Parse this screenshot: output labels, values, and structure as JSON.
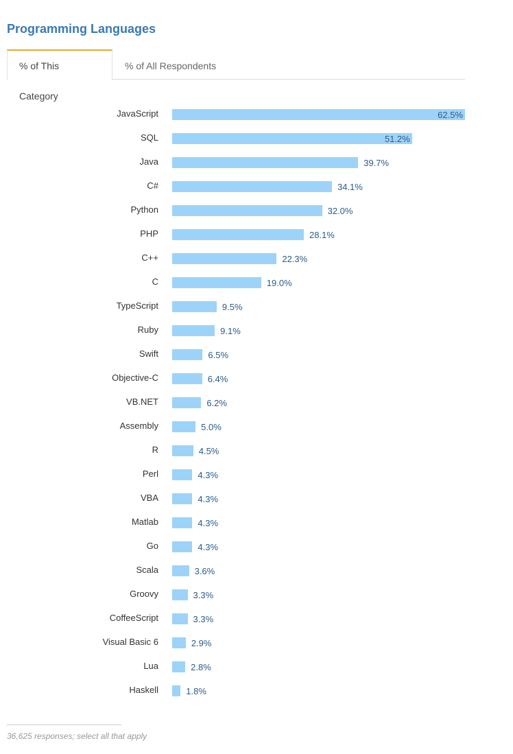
{
  "header": {
    "title": "Programming Languages"
  },
  "tabs": [
    {
      "label": "% of This Category",
      "active": true
    },
    {
      "label": "% of All Respondents",
      "active": false
    }
  ],
  "chart_data": {
    "type": "bar",
    "orientation": "horizontal",
    "title": "Programming Languages",
    "categories": [
      "JavaScript",
      "SQL",
      "Java",
      "C#",
      "Python",
      "PHP",
      "C++",
      "C",
      "TypeScript",
      "Ruby",
      "Swift",
      "Objective-C",
      "VB.NET",
      "Assembly",
      "R",
      "Perl",
      "VBA",
      "Matlab",
      "Go",
      "Scala",
      "Groovy",
      "CoffeeScript",
      "Visual Basic 6",
      "Lua",
      "Haskell"
    ],
    "values": [
      62.5,
      51.2,
      39.7,
      34.1,
      32.0,
      28.1,
      22.3,
      19.0,
      9.5,
      9.1,
      6.5,
      6.4,
      6.2,
      5.0,
      4.5,
      4.3,
      4.3,
      4.3,
      4.3,
      3.6,
      3.3,
      3.3,
      2.9,
      2.8,
      1.8
    ],
    "value_suffix": "%",
    "xlim": [
      0,
      62.5
    ],
    "bar_color": "#9dd3f8",
    "grid": false
  },
  "footer": {
    "note": "36,625 responses; select all that apply"
  }
}
